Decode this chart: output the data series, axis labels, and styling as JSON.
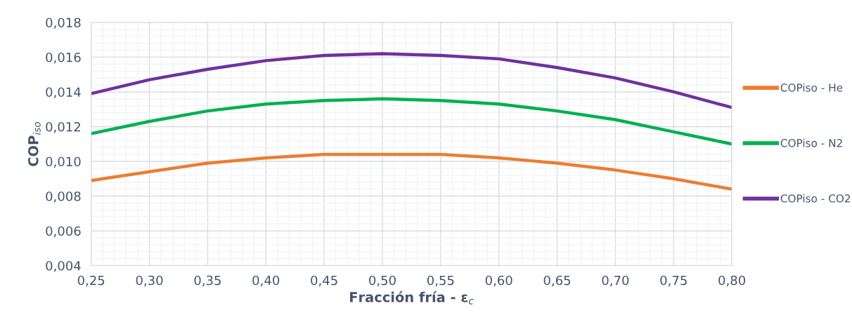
{
  "chart_data": {
    "type": "line",
    "xlabel": "Fracción fría - ε$_{c}$",
    "ylabel": "COP$_{iso}$",
    "x": [
      0.25,
      0.3,
      0.35,
      0.4,
      0.45,
      0.5,
      0.55,
      0.6,
      0.65,
      0.7,
      0.75,
      0.8
    ],
    "series": [
      {
        "name": "COPiso - He",
        "color": "#ed7d31",
        "values": [
          0.0089,
          0.0094,
          0.0099,
          0.0102,
          0.0104,
          0.0104,
          0.0104,
          0.0102,
          0.0099,
          0.0095,
          0.009,
          0.0084
        ]
      },
      {
        "name": "COPiso - N2",
        "color": "#00b050",
        "values": [
          0.0116,
          0.0123,
          0.0129,
          0.0133,
          0.0135,
          0.0136,
          0.0135,
          0.0133,
          0.0129,
          0.0124,
          0.0117,
          0.011
        ]
      },
      {
        "name": "COPiso - CO2",
        "color": "#7030a0",
        "values": [
          0.0139,
          0.0147,
          0.0153,
          0.0158,
          0.0161,
          0.0162,
          0.0161,
          0.0159,
          0.0154,
          0.0148,
          0.014,
          0.0131
        ]
      }
    ],
    "xlim": [
      0.25,
      0.8
    ],
    "xticks": [
      {
        "value": 0.25,
        "label": "0,25"
      },
      {
        "value": 0.3,
        "label": "0,30"
      },
      {
        "value": 0.35,
        "label": "0,35"
      },
      {
        "value": 0.4,
        "label": "0,40"
      },
      {
        "value": 0.45,
        "label": "0,45"
      },
      {
        "value": 0.5,
        "label": "0,50"
      },
      {
        "value": 0.55,
        "label": "0,55"
      },
      {
        "value": 0.6,
        "label": "0,60"
      },
      {
        "value": 0.65,
        "label": "0,65"
      },
      {
        "value": 0.7,
        "label": "0,70"
      },
      {
        "value": 0.75,
        "label": "0,75"
      },
      {
        "value": 0.8,
        "label": "0,80"
      }
    ],
    "ylim": [
      0.004,
      0.018
    ],
    "yticks": [
      {
        "value": 0.004,
        "label": "0,004"
      },
      {
        "value": 0.006,
        "label": "0,006"
      },
      {
        "value": 0.008,
        "label": "0,008"
      },
      {
        "value": 0.01,
        "label": "0,010"
      },
      {
        "value": 0.012,
        "label": "0,012"
      },
      {
        "value": 0.014,
        "label": "0,014"
      },
      {
        "value": 0.016,
        "label": "0,016"
      },
      {
        "value": 0.018,
        "label": "0,018"
      }
    ],
    "grid": true,
    "legend": "right",
    "marker": "none",
    "line_style": "solid"
  }
}
